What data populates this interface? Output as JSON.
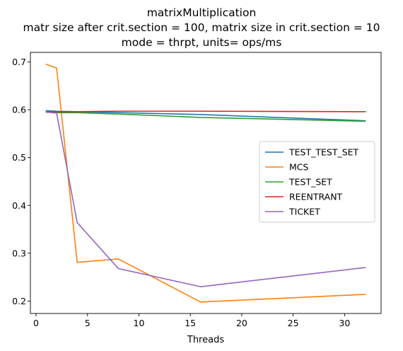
{
  "chart_data": {
    "type": "line",
    "title": [
      "matrixMultiplication",
      "matr size after crit.section = 100, matrix size in crit.section = 10",
      "mode = thrpt, units= ops/ms"
    ],
    "xlabel": "Threads",
    "ylabel": "",
    "xlim": [
      -0.55,
      33.55
    ],
    "ylim": [
      0.174,
      0.72
    ],
    "xticks": [
      0,
      5,
      10,
      15,
      20,
      25,
      30
    ],
    "yticks": [
      0.2,
      0.3,
      0.4,
      0.5,
      0.6,
      0.7
    ],
    "ytick_labels": [
      "0.2",
      "0.3",
      "0.4",
      "0.5",
      "0.6",
      "0.7"
    ],
    "grid": false,
    "legend_position": "center-right",
    "x": [
      1,
      2,
      4,
      8,
      16,
      32
    ],
    "series": [
      {
        "name": "TEST_TEST_SET",
        "color": "#1f77b4",
        "values": [
          0.598,
          0.597,
          0.596,
          0.594,
          0.59,
          0.577
        ]
      },
      {
        "name": "MCS",
        "color": "#ff7f0e",
        "values": [
          0.695,
          0.687,
          0.281,
          0.288,
          0.198,
          0.214
        ]
      },
      {
        "name": "TEST_SET",
        "color": "#2ca02c",
        "values": [
          0.596,
          0.594,
          0.594,
          0.591,
          0.584,
          0.576
        ]
      },
      {
        "name": "REENTRANT",
        "color": "#d62728",
        "values": [
          0.595,
          0.596,
          0.596,
          0.597,
          0.597,
          0.596
        ]
      },
      {
        "name": "TICKET",
        "color": "#9467bd",
        "values": [
          0.595,
          0.593,
          0.364,
          0.268,
          0.23,
          0.27
        ]
      }
    ]
  }
}
